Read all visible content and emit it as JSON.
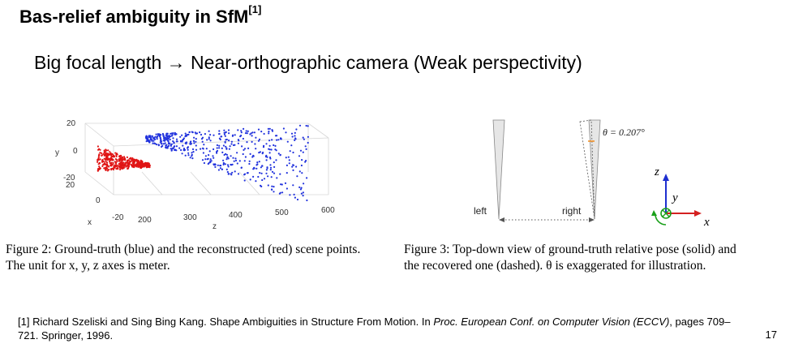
{
  "title": "Bas-relief ambiguity in SfM",
  "title_ref": "[1]",
  "subtitle": "Big focal length → Near-orthographic camera (Weak perspectivity)",
  "figure2": {
    "caption_label": "Figure 2:",
    "caption_text": "Ground-truth (blue) and the reconstructed (red) scene points.",
    "caption_line2": "The unit for x, y, z axes is meter.",
    "colors": {
      "ground_truth": "#2233dd",
      "reconstructed": "#e01515"
    },
    "y_ticks": [
      "20",
      "0",
      "-20"
    ],
    "x_ticks": [
      "20",
      "0",
      "-20"
    ],
    "z_ticks": [
      "200",
      "300",
      "400",
      "500",
      "600"
    ],
    "y_label": "y",
    "x_label": "x",
    "z_label": "z"
  },
  "figure3": {
    "caption_label": "Figure 3:",
    "caption_text": "Top-down view of ground-truth relative pose (solid) and",
    "caption_line2": "the recovered one (dashed). θ is exaggerated for illustration.",
    "theta_label": "θ = 0.207°",
    "left_label": "left",
    "right_label": "right",
    "axis_z": "z",
    "axis_y": "y",
    "axis_x": "x",
    "colors": {
      "z_axis": "#1e2fd0",
      "x_axis": "#d42020",
      "y_axis": "#1aa01a"
    }
  },
  "footnote_ref": "[1]",
  "footnote_text": "Richard Szeliski and Sing Bing Kang. Shape Ambiguities in Structure From Motion. In ",
  "footnote_venue": "Proc. European Conf. on Computer Vision (ECCV)",
  "footnote_tail": ", pages 709–721. Springer, 1996.",
  "page_number": "17"
}
